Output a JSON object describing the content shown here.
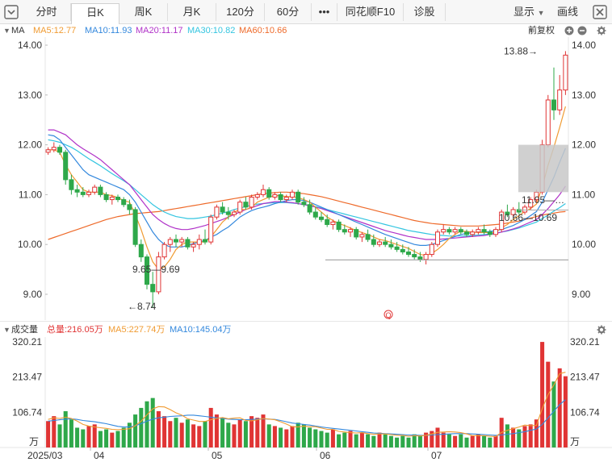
{
  "toolbar": {
    "collapse_icon": "square-caret-down-icon",
    "tabs": [
      "分时",
      "日K",
      "周K",
      "月K",
      "120分",
      "60分",
      "•••",
      "同花顺F10",
      "诊股"
    ],
    "active_tab": "日K",
    "display_label": "显示",
    "draw_label": "画线",
    "close_icon": "close-x-icon"
  },
  "ma_legend": {
    "indicator": "MA",
    "ma5": "MA5:12.77",
    "ma10": "MA10:11.93",
    "ma20": "MA20:11.17",
    "ma30": "MA30:10.82",
    "ma60": "MA60:10.66",
    "adjust": "前复权",
    "colors": {
      "ma5": "#f09b32",
      "ma10": "#3388dd",
      "ma20": "#b032c8",
      "ma30": "#33c5e0",
      "ma60": "#ee6a2a",
      "up": "#e03434",
      "down": "#2ea84a"
    }
  },
  "price_axis": {
    "ticks": [
      "14.00",
      "13.00",
      "12.00",
      "11.00",
      "10.00",
      "9.00"
    ]
  },
  "annotations": {
    "high": "13.88→",
    "low": "←8.74",
    "range1": "9.65—9.69",
    "range2": "10.66—10.69",
    "range3": "11.05—…",
    "event_marker": "Q"
  },
  "volume_legend": {
    "title": "成交量",
    "total": "总量:216.05万",
    "ma5": "MA5:227.74万",
    "ma10": "MA10:145.04万"
  },
  "volume_axis": {
    "ticks": [
      "320.21",
      "213.47",
      "106.74"
    ],
    "unit": "万"
  },
  "date_axis": {
    "labels": [
      "2025/03",
      "04",
      "05",
      "06",
      "07"
    ]
  },
  "chart_data": {
    "type": "candlestick",
    "ylim": [
      8.5,
      14.3
    ],
    "ohlc": [
      [
        11.85,
        11.95,
        11.8,
        11.9
      ],
      [
        11.9,
        12.05,
        11.85,
        11.95
      ],
      [
        11.95,
        12.0,
        11.8,
        11.85
      ],
      [
        11.85,
        11.9,
        11.2,
        11.3
      ],
      [
        11.3,
        11.4,
        11.0,
        11.1
      ],
      [
        11.1,
        11.2,
        10.95,
        11.05
      ],
      [
        11.05,
        11.15,
        10.95,
        11.0
      ],
      [
        11.0,
        11.1,
        10.95,
        11.05
      ],
      [
        11.05,
        11.2,
        11.0,
        11.15
      ],
      [
        11.15,
        11.2,
        10.95,
        11.0
      ],
      [
        11.0,
        11.05,
        10.85,
        10.9
      ],
      [
        10.9,
        11.0,
        10.8,
        10.95
      ],
      [
        10.95,
        11.0,
        10.85,
        10.9
      ],
      [
        10.9,
        10.95,
        10.75,
        10.8
      ],
      [
        10.8,
        10.9,
        10.6,
        10.7
      ],
      [
        10.7,
        10.75,
        9.95,
        10.0
      ],
      [
        10.0,
        10.1,
        9.65,
        9.75
      ],
      [
        9.75,
        9.8,
        9.1,
        9.2
      ],
      [
        9.2,
        9.45,
        8.74,
        9.05
      ],
      [
        9.05,
        9.85,
        9.0,
        9.75
      ],
      [
        9.75,
        10.05,
        9.7,
        10.0
      ],
      [
        10.0,
        10.15,
        9.85,
        10.1
      ],
      [
        10.1,
        10.2,
        9.95,
        10.05
      ],
      [
        10.05,
        10.15,
        9.95,
        10.1
      ],
      [
        10.1,
        10.15,
        9.9,
        9.95
      ],
      [
        9.95,
        10.05,
        9.85,
        10.0
      ],
      [
        10.0,
        10.2,
        9.9,
        10.1
      ],
      [
        10.1,
        10.3,
        10.0,
        10.05
      ],
      [
        10.05,
        10.6,
        10.0,
        10.55
      ],
      [
        10.55,
        10.8,
        10.5,
        10.75
      ],
      [
        10.75,
        10.85,
        10.6,
        10.65
      ],
      [
        10.65,
        10.75,
        10.5,
        10.6
      ],
      [
        10.6,
        10.7,
        10.55,
        10.65
      ],
      [
        10.65,
        10.9,
        10.6,
        10.85
      ],
      [
        10.85,
        10.95,
        10.7,
        10.75
      ],
      [
        10.75,
        11.0,
        10.7,
        10.95
      ],
      [
        10.95,
        11.05,
        10.9,
        11.0
      ],
      [
        11.0,
        11.2,
        10.95,
        11.1
      ],
      [
        11.1,
        11.15,
        10.9,
        10.95
      ],
      [
        10.95,
        11.05,
        10.9,
        11.0
      ],
      [
        11.0,
        11.05,
        10.85,
        10.9
      ],
      [
        10.9,
        11.0,
        10.85,
        10.95
      ],
      [
        10.95,
        11.1,
        10.9,
        11.05
      ],
      [
        11.05,
        11.1,
        10.8,
        10.85
      ],
      [
        10.85,
        10.95,
        10.75,
        10.8
      ],
      [
        10.8,
        10.9,
        10.6,
        10.65
      ],
      [
        10.65,
        10.75,
        10.5,
        10.55
      ],
      [
        10.55,
        10.65,
        10.45,
        10.5
      ],
      [
        10.5,
        10.6,
        10.35,
        10.4
      ],
      [
        10.4,
        10.5,
        10.3,
        10.45
      ],
      [
        10.45,
        10.5,
        10.25,
        10.3
      ],
      [
        10.3,
        10.4,
        10.2,
        10.25
      ],
      [
        10.25,
        10.35,
        10.15,
        10.3
      ],
      [
        10.3,
        10.35,
        10.1,
        10.15
      ],
      [
        10.15,
        10.25,
        10.05,
        10.2
      ],
      [
        10.2,
        10.3,
        10.05,
        10.1
      ],
      [
        10.1,
        10.2,
        9.95,
        10.0
      ],
      [
        10.0,
        10.1,
        9.95,
        10.05
      ],
      [
        10.05,
        10.15,
        9.95,
        10.0
      ],
      [
        10.0,
        10.1,
        9.9,
        9.95
      ],
      [
        9.95,
        10.05,
        9.85,
        9.9
      ],
      [
        9.9,
        10.0,
        9.8,
        9.85
      ],
      [
        9.85,
        9.95,
        9.75,
        9.8
      ],
      [
        9.8,
        9.9,
        9.7,
        9.75
      ],
      [
        9.75,
        9.85,
        9.65,
        9.7
      ],
      [
        9.7,
        9.85,
        9.6,
        9.8
      ],
      [
        9.8,
        10.05,
        9.75,
        10.0
      ],
      [
        10.0,
        10.3,
        9.95,
        10.25
      ],
      [
        10.25,
        10.4,
        10.2,
        10.3
      ],
      [
        10.3,
        10.35,
        10.2,
        10.25
      ],
      [
        10.25,
        10.35,
        10.2,
        10.3
      ],
      [
        10.3,
        10.35,
        10.2,
        10.25
      ],
      [
        10.25,
        10.3,
        10.15,
        10.2
      ],
      [
        10.2,
        10.3,
        10.15,
        10.25
      ],
      [
        10.25,
        10.35,
        10.2,
        10.3
      ],
      [
        10.3,
        10.4,
        10.2,
        10.25
      ],
      [
        10.25,
        10.3,
        10.15,
        10.2
      ],
      [
        10.2,
        10.35,
        10.15,
        10.3
      ],
      [
        10.3,
        10.7,
        10.25,
        10.65
      ],
      [
        10.65,
        10.8,
        10.55,
        10.6
      ],
      [
        10.6,
        10.75,
        10.55,
        10.7
      ],
      [
        10.7,
        10.85,
        10.6,
        10.65
      ],
      [
        10.65,
        10.8,
        10.6,
        10.75
      ],
      [
        10.75,
        10.95,
        10.7,
        10.9
      ],
      [
        10.9,
        11.1,
        10.85,
        11.05
      ],
      [
        11.05,
        12.1,
        11.0,
        12.0
      ],
      [
        12.0,
        13.0,
        11.95,
        12.9
      ],
      [
        12.9,
        13.55,
        12.5,
        12.7
      ],
      [
        12.7,
        13.4,
        12.6,
        13.1
      ],
      [
        13.1,
        13.88,
        13.0,
        13.8
      ]
    ],
    "volume": [
      80,
      95,
      70,
      110,
      85,
      60,
      55,
      65,
      70,
      50,
      55,
      45,
      50,
      60,
      75,
      100,
      120,
      140,
      150,
      110,
      95,
      80,
      90,
      75,
      85,
      70,
      65,
      80,
      120,
      100,
      90,
      75,
      70,
      85,
      80,
      95,
      90,
      100,
      70,
      65,
      60,
      55,
      65,
      75,
      70,
      60,
      55,
      50,
      45,
      55,
      40,
      45,
      50,
      40,
      45,
      40,
      35,
      45,
      40,
      35,
      30,
      35,
      30,
      40,
      35,
      45,
      50,
      60,
      45,
      40,
      35,
      40,
      30,
      35,
      40,
      35,
      30,
      35,
      90,
      70,
      60,
      55,
      65,
      70,
      85,
      320,
      260,
      200,
      240,
      216
    ],
    "ma5": [
      11.9,
      11.9,
      11.85,
      11.6,
      11.4,
      11.25,
      11.1,
      11.05,
      11.05,
      11.05,
      11.0,
      10.98,
      10.94,
      10.88,
      10.85,
      10.6,
      10.3,
      9.95,
      9.65,
      9.5,
      9.55,
      9.7,
      9.9,
      10.0,
      10.05,
      10.05,
      10.05,
      10.05,
      10.15,
      10.3,
      10.45,
      10.55,
      10.65,
      10.7,
      10.7,
      10.75,
      10.85,
      10.9,
      10.95,
      10.98,
      10.98,
      10.96,
      10.96,
      10.94,
      10.9,
      10.85,
      10.75,
      10.65,
      10.55,
      10.48,
      10.42,
      10.38,
      10.33,
      10.28,
      10.24,
      10.2,
      10.15,
      10.1,
      10.08,
      10.04,
      10.0,
      9.96,
      9.92,
      9.86,
      9.8,
      9.78,
      9.82,
      9.9,
      10.0,
      10.12,
      10.2,
      10.27,
      10.26,
      10.25,
      10.24,
      10.24,
      10.24,
      10.24,
      10.34,
      10.4,
      10.5,
      10.58,
      10.66,
      10.72,
      10.81,
      11.15,
      11.59,
      11.95,
      12.35,
      12.77
    ],
    "ma10": [
      12.2,
      12.18,
      12.1,
      11.95,
      11.8,
      11.65,
      11.5,
      11.4,
      11.35,
      11.3,
      11.25,
      11.2,
      11.15,
      11.1,
      11.0,
      10.85,
      10.65,
      10.45,
      10.25,
      10.1,
      10.0,
      9.95,
      9.95,
      9.95,
      9.98,
      10.02,
      10.05,
      10.08,
      10.15,
      10.2,
      10.28,
      10.35,
      10.45,
      10.55,
      10.62,
      10.68,
      10.72,
      10.75,
      10.78,
      10.82,
      10.85,
      10.88,
      10.9,
      10.9,
      10.88,
      10.85,
      10.8,
      10.75,
      10.7,
      10.65,
      10.6,
      10.55,
      10.5,
      10.45,
      10.4,
      10.35,
      10.3,
      10.25,
      10.2,
      10.16,
      10.12,
      10.08,
      10.04,
      10.0,
      9.98,
      9.98,
      10.0,
      10.04,
      10.08,
      10.12,
      10.16,
      10.2,
      10.22,
      10.24,
      10.25,
      10.25,
      10.26,
      10.28,
      10.3,
      10.34,
      10.38,
      10.44,
      10.5,
      10.58,
      10.66,
      10.85,
      11.1,
      11.35,
      11.65,
      11.93
    ],
    "ma20": [
      12.3,
      12.3,
      12.25,
      12.2,
      12.1,
      12.0,
      11.92,
      11.85,
      11.78,
      11.7,
      11.6,
      11.5,
      11.4,
      11.3,
      11.2,
      11.05,
      10.9,
      10.75,
      10.6,
      10.5,
      10.42,
      10.36,
      10.32,
      10.3,
      10.3,
      10.32,
      10.35,
      10.38,
      10.42,
      10.46,
      10.5,
      10.55,
      10.6,
      10.65,
      10.7,
      10.74,
      10.78,
      10.82,
      10.84,
      10.86,
      10.86,
      10.85,
      10.84,
      10.82,
      10.8,
      10.78,
      10.75,
      10.72,
      10.68,
      10.64,
      10.6,
      10.56,
      10.52,
      10.48,
      10.44,
      10.4,
      10.36,
      10.32,
      10.28,
      10.25,
      10.22,
      10.19,
      10.16,
      10.14,
      10.12,
      10.1,
      10.1,
      10.1,
      10.11,
      10.12,
      10.13,
      10.14,
      10.15,
      10.16,
      10.17,
      10.18,
      10.2,
      10.22,
      10.25,
      10.28,
      10.31,
      10.35,
      10.4,
      10.45,
      10.5,
      10.6,
      10.72,
      10.86,
      11.0,
      11.17
    ],
    "ma30": [
      12.1,
      12.08,
      12.05,
      12.0,
      11.95,
      11.88,
      11.8,
      11.72,
      11.65,
      11.58,
      11.5,
      11.42,
      11.35,
      11.28,
      11.2,
      11.1,
      11.0,
      10.9,
      10.8,
      10.72,
      10.65,
      10.6,
      10.56,
      10.54,
      10.52,
      10.52,
      10.53,
      10.55,
      10.57,
      10.6,
      10.63,
      10.66,
      10.7,
      10.73,
      10.76,
      10.79,
      10.81,
      10.82,
      10.83,
      10.84,
      10.84,
      10.84,
      10.83,
      10.82,
      10.8,
      10.78,
      10.76,
      10.73,
      10.7,
      10.67,
      10.64,
      10.61,
      10.58,
      10.55,
      10.52,
      10.49,
      10.46,
      10.43,
      10.4,
      10.37,
      10.34,
      10.31,
      10.28,
      10.26,
      10.24,
      10.22,
      10.2,
      10.19,
      10.18,
      10.17,
      10.17,
      10.17,
      10.17,
      10.18,
      10.19,
      10.2,
      10.21,
      10.23,
      10.25,
      10.27,
      10.3,
      10.33,
      10.37,
      10.41,
      10.45,
      10.52,
      10.59,
      10.67,
      10.74,
      10.82
    ],
    "ma60": [
      10.1,
      10.14,
      10.18,
      10.22,
      10.26,
      10.3,
      10.34,
      10.38,
      10.42,
      10.46,
      10.5,
      10.53,
      10.56,
      10.58,
      10.6,
      10.62,
      10.63,
      10.64,
      10.65,
      10.66,
      10.68,
      10.7,
      10.72,
      10.74,
      10.76,
      10.78,
      10.8,
      10.82,
      10.84,
      10.86,
      10.88,
      10.9,
      10.92,
      10.94,
      10.96,
      10.98,
      11.0,
      11.02,
      11.03,
      11.04,
      11.05,
      11.05,
      11.04,
      11.03,
      11.02,
      11.0,
      10.98,
      10.96,
      10.93,
      10.9,
      10.87,
      10.84,
      10.81,
      10.78,
      10.75,
      10.72,
      10.69,
      10.66,
      10.63,
      10.6,
      10.57,
      10.54,
      10.51,
      10.48,
      10.46,
      10.44,
      10.42,
      10.41,
      10.4,
      10.39,
      10.38,
      10.37,
      10.37,
      10.37,
      10.37,
      10.38,
      10.39,
      10.4,
      10.41,
      10.43,
      10.45,
      10.47,
      10.5,
      10.53,
      10.56,
      10.59,
      10.61,
      10.63,
      10.65,
      10.66
    ],
    "vol_ma5": [
      85,
      90,
      88,
      92,
      88,
      80,
      70,
      65,
      62,
      60,
      58,
      55,
      54,
      55,
      57,
      66,
      80,
      99,
      117,
      124,
      123,
      115,
      105,
      98,
      87,
      83,
      79,
      79,
      84,
      88,
      91,
      87,
      89,
      90,
      82,
      81,
      84,
      88,
      86,
      84,
      78,
      71,
      63,
      62,
      65,
      63,
      63,
      59,
      55,
      55,
      49,
      47,
      45,
      44,
      45,
      42,
      40,
      41,
      41,
      39,
      37,
      37,
      34,
      36,
      35,
      37,
      41,
      46,
      47,
      48,
      47,
      45,
      41,
      36,
      36,
      36,
      34,
      33,
      46,
      52,
      57,
      62,
      68,
      66,
      67,
      118,
      160,
      190,
      224,
      228
    ],
    "vol_ma10": [
      80,
      82,
      84,
      86,
      87,
      85,
      82,
      80,
      78,
      75,
      72,
      68,
      64,
      62,
      62,
      66,
      72,
      80,
      86,
      90,
      92,
      94,
      95,
      96,
      98,
      98,
      96,
      94,
      92,
      90,
      88,
      86,
      85,
      84,
      84,
      85,
      86,
      87,
      86,
      85,
      82,
      78,
      74,
      72,
      70,
      68,
      65,
      62,
      60,
      58,
      56,
      54,
      52,
      50,
      48,
      46,
      44,
      43,
      42,
      41,
      40,
      39,
      38,
      38,
      37,
      37,
      38,
      39,
      40,
      41,
      42,
      42,
      42,
      41,
      40,
      39,
      38,
      37,
      38,
      40,
      42,
      45,
      48,
      52,
      56,
      70,
      90,
      110,
      130,
      145
    ]
  }
}
